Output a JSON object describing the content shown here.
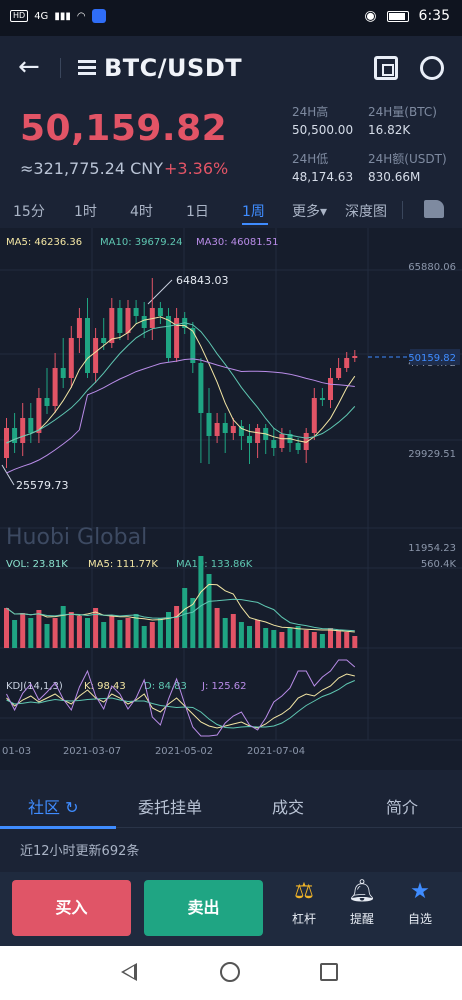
{
  "status_bar": {
    "network_badge": "HD",
    "signal": "4G",
    "time": "6:35"
  },
  "header": {
    "pair": "BTC/USDT"
  },
  "price": {
    "last": "50,159.82",
    "cny": "≈321,775.24 CNY",
    "change": "+3.36%"
  },
  "stats": [
    {
      "label": "24H高",
      "value": "50,500.00"
    },
    {
      "label": "24H量(BTC)",
      "value": "16.82K"
    },
    {
      "label": "24H低",
      "value": "48,174.63"
    },
    {
      "label": "24H额(USDT)",
      "value": "830.66M"
    }
  ],
  "timeframes": [
    "15分",
    "1时",
    "4时",
    "1日",
    "1周",
    "更多▾",
    "深度图"
  ],
  "active_timeframe": "1周",
  "chart": {
    "ma": {
      "ma5": "MA5: 46236.36",
      "ma10": "MA10: 39679.24",
      "ma30": "MA30: 46081.51"
    },
    "price_axis": [
      "65880.06",
      "47754.72",
      "29929.51",
      "11954.23"
    ],
    "last_price_tag": "50159.82",
    "high_label": "64843.03",
    "low_label": "25579.73",
    "watermark": "Huobi Global",
    "vol": {
      "vol": "VOL: 23.81K",
      "ma5": "MA5: 111.77K",
      "ma10": "MA10: 133.86K",
      "axis": "560.4K"
    },
    "kdj": {
      "name": "KDJ(14,1,3)",
      "k": "K: 98.43",
      "d": "D: 84.83",
      "j": "J: 125.62"
    },
    "dates": [
      "01-03",
      "2021-03-07",
      "2021-05-02",
      "2021-07-04"
    ],
    "colors": {
      "up": "#e25466",
      "down": "#1fa583",
      "ma5": "#f3e6a4",
      "ma10": "#5fc7b2",
      "ma30": "#b98ce8"
    }
  },
  "tabs": [
    "社区",
    "委托挂单",
    "成交",
    "简介"
  ],
  "update_text": "近12小时更新692条",
  "actions": {
    "buy": "买入",
    "sell": "卖出",
    "leverage": "杠杆",
    "alert": "提醒",
    "watchlist": "自选"
  }
}
